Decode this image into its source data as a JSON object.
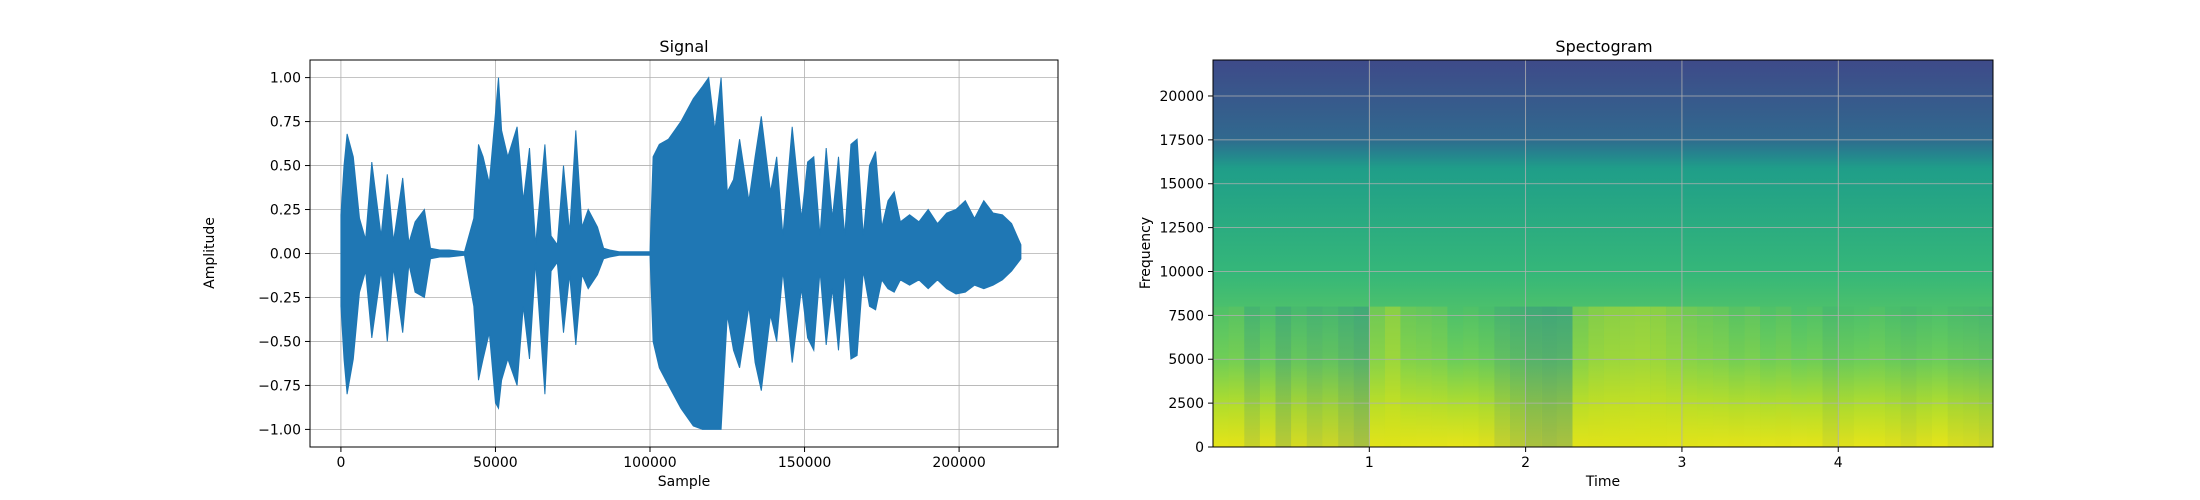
{
  "chart_data": [
    {
      "type": "line",
      "title": "Signal",
      "xlabel": "Sample",
      "ylabel": "Amplitude",
      "xlim": [
        -10000,
        232000
      ],
      "ylim": [
        -1.1,
        1.1
      ],
      "grid": true,
      "series_color": "#1f77b4",
      "x_ticks": [
        0,
        50000,
        100000,
        150000,
        200000
      ],
      "x_tick_labels": [
        "0",
        "50000",
        "100000",
        "150000",
        "200000"
      ],
      "y_ticks": [
        1.0,
        0.75,
        0.5,
        0.25,
        0.0,
        -0.25,
        -0.5,
        -0.75,
        -1.0
      ],
      "y_tick_labels": [
        "1.00",
        "0.75",
        "0.50",
        "0.25",
        "0.00",
        "−0.25",
        "−0.50",
        "−0.75",
        "−1.00"
      ],
      "envelope": {
        "x": [
          0,
          1000,
          2000,
          4000,
          6000,
          8000,
          10000,
          13000,
          15000,
          17000,
          20000,
          22000,
          24000,
          27000,
          29000,
          32000,
          35000,
          40000,
          43000,
          44500,
          46000,
          48000,
          50000,
          51000,
          52000,
          54000,
          57000,
          59000,
          61000,
          63000,
          66000,
          68000,
          70000,
          72000,
          74000,
          76000,
          78000,
          80000,
          83000,
          85000,
          87000,
          90000,
          93000,
          96000,
          100000,
          101000,
          103000,
          106000,
          110000,
          114000,
          117000,
          119000,
          121000,
          123000,
          125000,
          127000,
          129000,
          132000,
          134000,
          136000,
          139000,
          141000,
          143000,
          146000,
          149000,
          151000,
          153000,
          155000,
          157000,
          159000,
          161000,
          163000,
          165000,
          167000,
          169000,
          171000,
          173000,
          175000,
          177000,
          179000,
          181000,
          184000,
          187000,
          190000,
          193000,
          196000,
          199000,
          202000,
          205000,
          208000,
          211000,
          214000,
          217000,
          220000
        ],
        "upper": [
          0.22,
          0.5,
          0.68,
          0.55,
          0.2,
          0.08,
          0.52,
          0.1,
          0.45,
          0.07,
          0.43,
          0.06,
          0.18,
          0.25,
          0.03,
          0.02,
          0.02,
          0.01,
          0.2,
          0.62,
          0.55,
          0.4,
          0.8,
          1.0,
          0.7,
          0.55,
          0.72,
          0.3,
          0.6,
          0.05,
          0.62,
          0.1,
          0.05,
          0.5,
          0.12,
          0.7,
          0.15,
          0.25,
          0.15,
          0.03,
          0.02,
          0.01,
          0.01,
          0.01,
          0.01,
          0.55,
          0.62,
          0.65,
          0.75,
          0.88,
          0.95,
          1.0,
          0.7,
          1.0,
          0.35,
          0.42,
          0.65,
          0.3,
          0.55,
          0.78,
          0.35,
          0.55,
          0.1,
          0.72,
          0.2,
          0.52,
          0.55,
          0.1,
          0.6,
          0.2,
          0.55,
          0.1,
          0.62,
          0.65,
          0.1,
          0.5,
          0.58,
          0.15,
          0.3,
          0.35,
          0.18,
          0.22,
          0.18,
          0.25,
          0.17,
          0.23,
          0.25,
          0.3,
          0.2,
          0.3,
          0.23,
          0.22,
          0.17,
          0.05
        ],
        "lower": [
          -0.3,
          -0.6,
          -0.8,
          -0.6,
          -0.22,
          -0.1,
          -0.48,
          -0.1,
          -0.5,
          -0.08,
          -0.45,
          -0.06,
          -0.22,
          -0.25,
          -0.03,
          -0.02,
          -0.02,
          -0.01,
          -0.3,
          -0.72,
          -0.6,
          -0.45,
          -0.85,
          -0.88,
          -0.72,
          -0.6,
          -0.75,
          -0.3,
          -0.6,
          -0.05,
          -0.8,
          -0.1,
          -0.05,
          -0.45,
          -0.12,
          -0.52,
          -0.12,
          -0.2,
          -0.12,
          -0.03,
          -0.02,
          -0.01,
          -0.01,
          -0.01,
          -0.01,
          -0.5,
          -0.65,
          -0.75,
          -0.88,
          -0.98,
          -1.0,
          -1.0,
          -1.0,
          -1.0,
          -0.35,
          -0.55,
          -0.65,
          -0.3,
          -0.62,
          -0.78,
          -0.35,
          -0.5,
          -0.1,
          -0.62,
          -0.2,
          -0.48,
          -0.55,
          -0.1,
          -0.52,
          -0.2,
          -0.55,
          -0.1,
          -0.6,
          -0.58,
          -0.1,
          -0.3,
          -0.32,
          -0.15,
          -0.2,
          -0.22,
          -0.15,
          -0.18,
          -0.15,
          -0.2,
          -0.15,
          -0.2,
          -0.23,
          -0.22,
          -0.18,
          -0.2,
          -0.18,
          -0.15,
          -0.1,
          -0.03
        ]
      }
    },
    {
      "type": "heatmap",
      "title": "Spectogram",
      "xlabel": "Time",
      "ylabel": "Frequency",
      "xlim": [
        0.0,
        4.99
      ],
      "ylim": [
        0,
        22050
      ],
      "grid": true,
      "colormap": "viridis",
      "x_ticks": [
        1,
        2,
        3,
        4
      ],
      "x_tick_labels": [
        "1",
        "2",
        "3",
        "4"
      ],
      "y_ticks": [
        0,
        2500,
        5000,
        7500,
        10000,
        12500,
        15000,
        17500,
        20000
      ],
      "y_tick_labels": [
        "0",
        "2500",
        "5000",
        "7500",
        "10000",
        "12500",
        "15000",
        "17500",
        "20000"
      ],
      "time_frames": [
        0.0,
        0.1,
        0.2,
        0.3,
        0.4,
        0.5,
        0.6,
        0.7,
        0.8,
        0.9,
        1.0,
        1.1,
        1.2,
        1.3,
        1.4,
        1.5,
        1.6,
        1.7,
        1.8,
        1.9,
        2.0,
        2.1,
        2.2,
        2.3,
        2.4,
        2.5,
        2.6,
        2.7,
        2.8,
        2.9,
        3.0,
        3.1,
        3.2,
        3.3,
        3.4,
        3.5,
        3.6,
        3.7,
        3.8,
        3.9,
        4.0,
        4.1,
        4.2,
        4.3,
        4.4,
        4.5,
        4.6,
        4.7,
        4.8,
        4.9
      ],
      "frame_energy": [
        0.72,
        0.75,
        0.6,
        0.68,
        0.55,
        0.65,
        0.58,
        0.62,
        0.55,
        0.5,
        0.85,
        0.95,
        0.82,
        0.8,
        0.78,
        0.7,
        0.72,
        0.68,
        0.6,
        0.55,
        0.5,
        0.48,
        0.5,
        0.85,
        0.92,
        0.95,
        0.96,
        0.97,
        0.95,
        0.9,
        0.85,
        0.82,
        0.8,
        0.75,
        0.78,
        0.72,
        0.75,
        0.7,
        0.72,
        0.65,
        0.68,
        0.7,
        0.72,
        0.68,
        0.65,
        0.68,
        0.7,
        0.66,
        0.65,
        0.62
      ]
    }
  ]
}
